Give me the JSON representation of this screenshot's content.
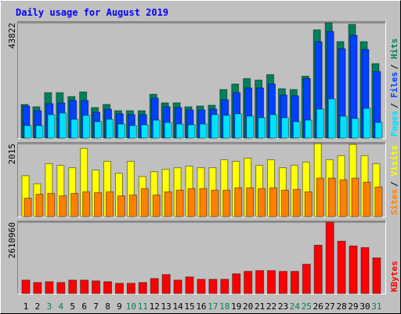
{
  "chart_data": [
    {
      "type": "bar",
      "title": "Daily usage for August 2019",
      "ylim": [
        0,
        43822
      ],
      "yticks": [
        43822
      ],
      "grid": true,
      "legend_separator": "/",
      "series": [
        {
          "name": "Hits",
          "color": "#00805c",
          "values": [
            12818,
            11924,
            17290,
            17290,
            15800,
            17588,
            11626,
            12818,
            10434,
            10434,
            10434,
            16694,
            13415,
            13415,
            11924,
            12222,
            12520,
            18482,
            20569,
            22656,
            22060,
            24146,
            18780,
            18482,
            23550,
            41138,
            43822,
            36666,
            43224,
            36666,
            28320
          ]
        },
        {
          "name": "Files",
          "color": "#0040ff",
          "values": [
            12222,
            10434,
            13117,
            13415,
            14309,
            14309,
            9837,
            11030,
            9241,
            8943,
            8943,
            15203,
            11924,
            11626,
            10732,
            10732,
            11030,
            14607,
            17290,
            19079,
            19079,
            20569,
            16396,
            16097,
            22656,
            36666,
            40542,
            33984,
            39052,
            33686,
            25339
          ]
        },
        {
          "name": "Pages",
          "color": "#00e0ff",
          "values": [
            4770,
            4770,
            8943,
            9539,
            7154,
            8645,
            6260,
            7154,
            5366,
            4770,
            5068,
            6856,
            5962,
            5366,
            5068,
            5366,
            8943,
            8645,
            9241,
            8347,
            7751,
            8943,
            7751,
            6260,
            6856,
            11030,
            14905,
            8347,
            7453,
            11328,
            5962
          ]
        }
      ]
    },
    {
      "type": "bar",
      "ylim": [
        0,
        2015
      ],
      "yticks": [
        2015
      ],
      "grid": true,
      "legend_separator": "/",
      "series": [
        {
          "name": "Visits",
          "color": "#ffff00",
          "values": [
            1129,
            908,
            1461,
            1417,
            1351,
            1882,
            1284,
            1528,
            1196,
            1528,
            1107,
            1240,
            1306,
            1351,
            1395,
            1351,
            1351,
            1572,
            1528,
            1616,
            1417,
            1572,
            1351,
            1417,
            1506,
            2015,
            1572,
            1683,
            1993,
            1683,
            1461
          ]
        },
        {
          "name": "Sites",
          "color": "#ff8000",
          "values": [
            509,
            620,
            642,
            576,
            642,
            686,
            664,
            686,
            576,
            598,
            775,
            598,
            686,
            731,
            775,
            775,
            731,
            731,
            797,
            797,
            775,
            797,
            731,
            753,
            686,
            1063,
            1063,
            1018,
            1063,
            952,
            819
          ]
        }
      ]
    },
    {
      "type": "bar",
      "ylim": [
        0,
        2610960
      ],
      "yticks": [
        2610960
      ],
      "grid": true,
      "categories": [
        "1",
        "2",
        "3",
        "4",
        "5",
        "6",
        "7",
        "8",
        "9",
        "10",
        "11",
        "12",
        "13",
        "14",
        "15",
        "16",
        "17",
        "18",
        "19",
        "20",
        "21",
        "22",
        "23",
        "24",
        "25",
        "26",
        "27",
        "28",
        "29",
        "30",
        "31"
      ],
      "category_colors": [
        "#000000",
        "#000000",
        "#00805c",
        "#00805c",
        "#000000",
        "#000000",
        "#000000",
        "#000000",
        "#000000",
        "#00805c",
        "#00805c",
        "#000000",
        "#000000",
        "#000000",
        "#000000",
        "#000000",
        "#00805c",
        "#00805c",
        "#000000",
        "#000000",
        "#000000",
        "#000000",
        "#000000",
        "#00805c",
        "#00805c",
        "#000000",
        "#000000",
        "#000000",
        "#000000",
        "#000000",
        "#00805c"
      ],
      "series": [
        {
          "name": "KBytes",
          "color": "#ff0000",
          "values": [
            493187,
            406154,
            435165,
            406154,
            493187,
            493187,
            464176,
            435165,
            377143,
            377143,
            406154,
            551209,
            696264,
            493187,
            609231,
            522198,
            522198,
            522198,
            725275,
            812308,
            841319,
            841319,
            812308,
            812308,
            1073407,
            1769671,
            2610960,
            1914726,
            1740660,
            1682638,
            1305495
          ]
        }
      ]
    }
  ]
}
